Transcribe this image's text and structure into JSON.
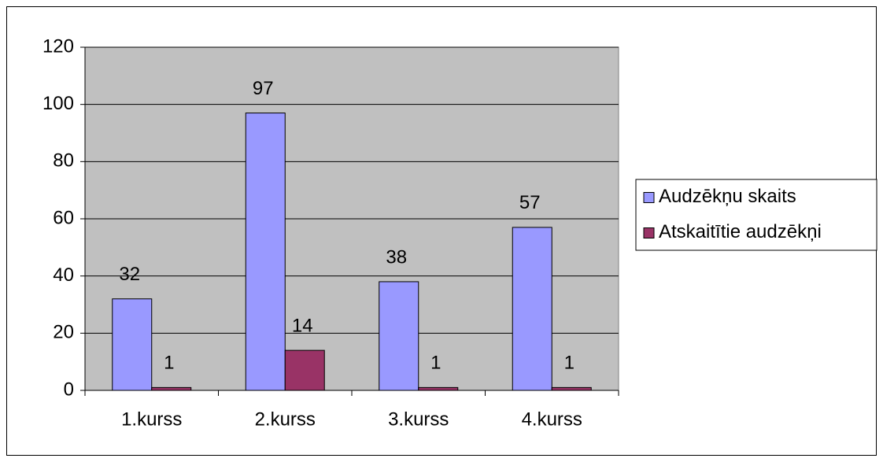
{
  "chart_data": {
    "type": "bar",
    "categories": [
      "1.kurss",
      "2.kurss",
      "3.kurss",
      "4.kurss"
    ],
    "series": [
      {
        "name": "Audzēkņu skaits",
        "color": "#9999ff",
        "values": [
          32,
          97,
          38,
          57
        ]
      },
      {
        "name": "Atskaitītie audzēkņi",
        "color": "#993366",
        "values": [
          1,
          14,
          1,
          1
        ]
      }
    ],
    "ylim": [
      0,
      120
    ],
    "yticks": [
      0,
      20,
      40,
      60,
      80,
      100,
      120
    ],
    "grid": true,
    "legend": "right",
    "plot_background": "#c0c0c0"
  }
}
